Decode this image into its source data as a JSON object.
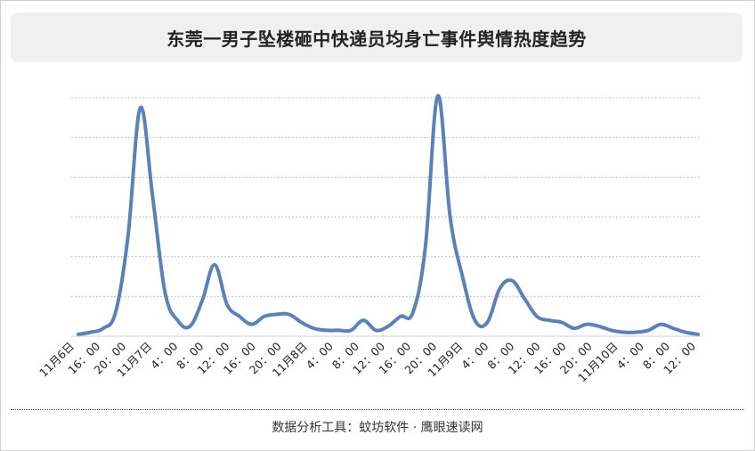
{
  "title": "东莞一男子坠楼砸中快递员均身亡事件舆情热度趋势",
  "footer": "数据分析工具：蚊坊软件 · 鹰眼速读网",
  "colors": {
    "line": "#5b82b8",
    "grid": "#9fb3d1",
    "title_bg": "#f0f0f0"
  },
  "chart_data": {
    "type": "line",
    "title": "东莞一男子坠楼砸中快递员均身亡事件舆情热度趋势",
    "xlabel": "",
    "ylabel": "",
    "y_axis_labels_shown": false,
    "ylim": [
      0,
      120
    ],
    "grid": "horizontal-dotted",
    "tick_labels": [
      "11月6日",
      "16：00",
      "20：00",
      "11月7日",
      "4：00",
      "8：00",
      "12：00",
      "16：00",
      "20：00",
      "11月8日",
      "4：00",
      "8：00",
      "12：00",
      "16：00",
      "20：00",
      "11月9日",
      "4：00",
      "8：00",
      "12：00",
      "16：00",
      "20：00",
      "11月10日",
      "4：00",
      "8：00",
      "12：00"
    ],
    "series": [
      {
        "values": [
          1,
          2,
          4,
          12,
          50,
          115,
          70,
          22,
          8,
          5,
          18,
          36,
          16,
          10,
          6,
          10,
          11,
          11,
          7,
          4,
          3,
          3,
          3,
          8,
          3,
          5,
          10,
          12,
          45,
          121,
          60,
          30,
          8,
          7,
          24,
          28,
          19,
          10,
          8,
          7,
          4,
          6,
          5,
          3,
          2,
          2,
          3,
          6,
          4,
          2,
          1
        ]
      }
    ]
  }
}
